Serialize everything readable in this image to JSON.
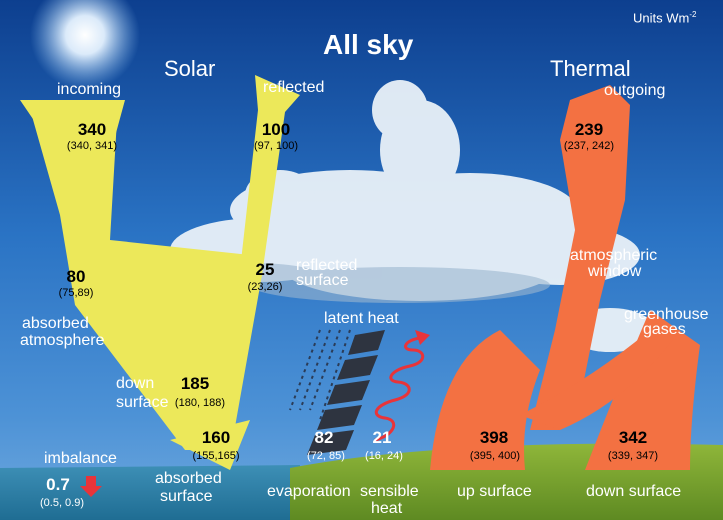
{
  "title": "All sky",
  "units": "Units Wm",
  "units_exp": "-2",
  "solar": "Solar",
  "thermal": "Thermal",
  "colors": {
    "solar": "#ece85a",
    "thermal": "#f37142",
    "sky": "#1f5fae",
    "heat_coil": "#e8343a"
  },
  "flows": {
    "incoming": {
      "label": "incoming",
      "value": "340",
      "range": "(340, 341)"
    },
    "reflected": {
      "label": "reflected",
      "value": "100",
      "range": "(97, 100)"
    },
    "outgoing": {
      "label": "outgoing",
      "value": "239",
      "range": "(237, 242)"
    },
    "absorbed_atmosphere": {
      "label1": "absorbed",
      "label2": "atmosphere",
      "value": "80",
      "range": "(75,89)"
    },
    "reflected_surface": {
      "label1": "reflected",
      "label2": "surface",
      "value": "25",
      "range": "(23,26)"
    },
    "atmospheric_window": {
      "label1": "atmospheric",
      "label2": "window"
    },
    "greenhouse_gases": {
      "label1": "greenhouse",
      "label2": "gases"
    },
    "down_surface_solar": {
      "label1": "down",
      "label2": "surface",
      "value": "185",
      "range": "(180, 188)"
    },
    "absorbed_surface": {
      "label1": "absorbed",
      "label2": "surface",
      "value": "160",
      "range": "(155,165)"
    },
    "latent_heat": {
      "label": "latent heat"
    },
    "evaporation": {
      "label": "evaporation",
      "value": "82",
      "range": "(72, 85)"
    },
    "sensible_heat": {
      "label1": "sensible",
      "label2": "heat",
      "value": "21",
      "range": "(16, 24)"
    },
    "up_surface": {
      "label": "up surface",
      "value": "398",
      "range": "(395, 400)"
    },
    "down_surface_thermal": {
      "label": "down surface",
      "value": "342",
      "range": "(339, 347)"
    },
    "imbalance": {
      "label": "imbalance",
      "value": "0.7",
      "range": "(0.5, 0.9)"
    }
  }
}
